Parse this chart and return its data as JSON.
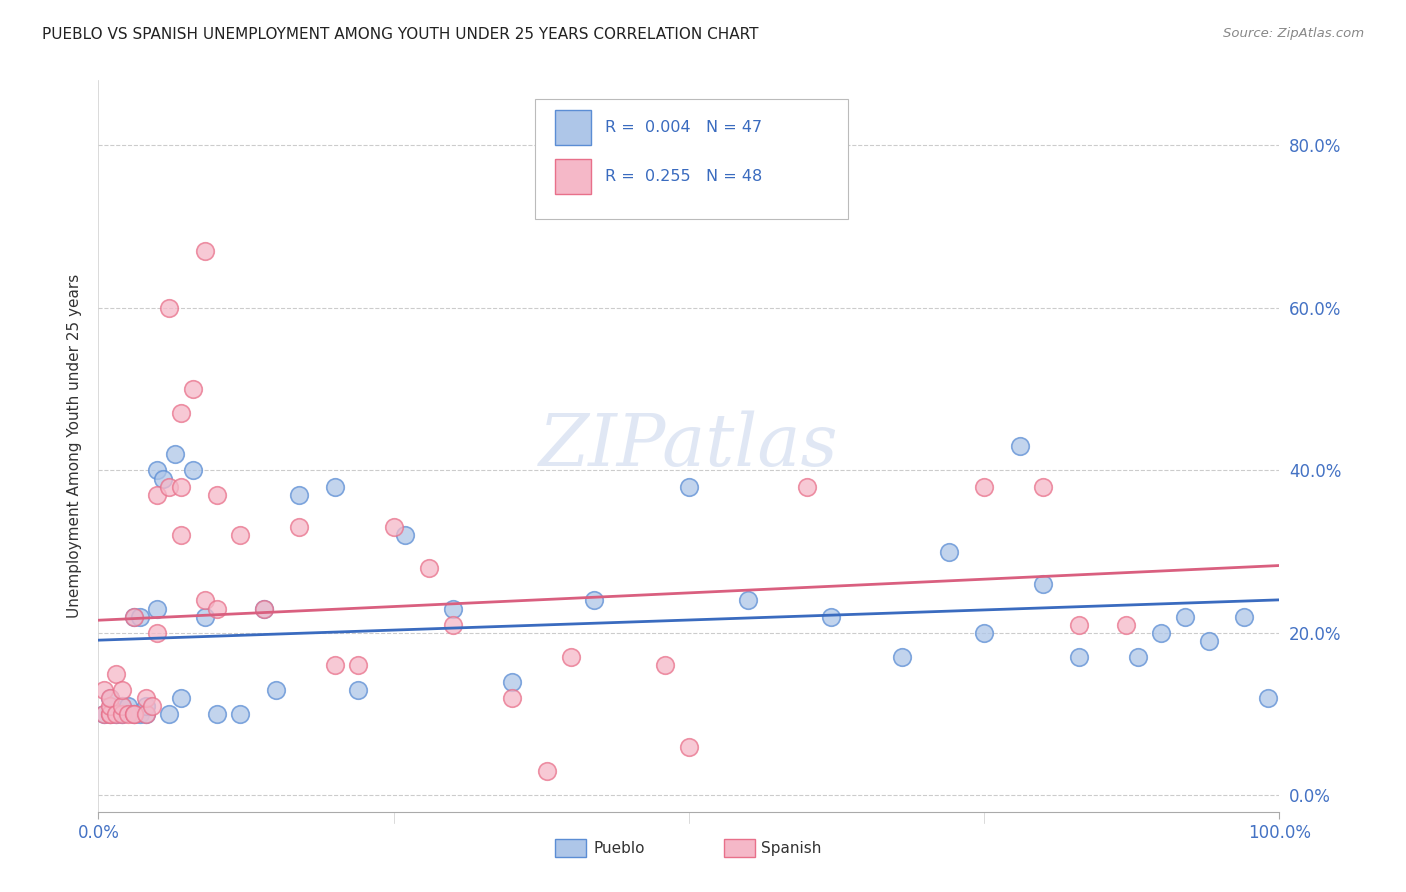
{
  "title": "PUEBLO VS SPANISH UNEMPLOYMENT AMONG YOUTH UNDER 25 YEARS CORRELATION CHART",
  "source": "Source: ZipAtlas.com",
  "ylabel": "Unemployment Among Youth under 25 years",
  "ytick_labels": [
    "0.0%",
    "20.0%",
    "40.0%",
    "60.0%",
    "80.0%"
  ],
  "ytick_vals": [
    0.0,
    0.2,
    0.4,
    0.6,
    0.8
  ],
  "legend_pueblo": "Pueblo",
  "legend_spanish": "Spanish",
  "pueblo_R": "0.004",
  "pueblo_N": "47",
  "spanish_R": "0.255",
  "spanish_N": "48",
  "pueblo_color": "#aec6e8",
  "spanish_color": "#f5b8c8",
  "pueblo_edge_color": "#5b8dd4",
  "spanish_edge_color": "#e8708a",
  "pueblo_line_color": "#3a6bbf",
  "spanish_line_color": "#d95f7f",
  "tick_color": "#4472c4",
  "text_color": "#333333",
  "grid_color": "#cccccc",
  "watermark": "ZIPatlas",
  "watermark_color": "#ccd8ee",
  "xlim": [
    0.0,
    1.0
  ],
  "ylim": [
    -0.02,
    0.88
  ],
  "pueblo_x": [
    0.005,
    0.01,
    0.01,
    0.015,
    0.02,
    0.02,
    0.025,
    0.03,
    0.03,
    0.035,
    0.035,
    0.04,
    0.04,
    0.05,
    0.05,
    0.055,
    0.06,
    0.065,
    0.07,
    0.08,
    0.09,
    0.1,
    0.12,
    0.14,
    0.15,
    0.17,
    0.2,
    0.22,
    0.26,
    0.3,
    0.35,
    0.42,
    0.5,
    0.55,
    0.62,
    0.68,
    0.72,
    0.75,
    0.78,
    0.8,
    0.83,
    0.88,
    0.9,
    0.92,
    0.94,
    0.97,
    0.99
  ],
  "pueblo_y": [
    0.1,
    0.1,
    0.12,
    0.1,
    0.1,
    0.11,
    0.11,
    0.1,
    0.22,
    0.1,
    0.22,
    0.1,
    0.11,
    0.23,
    0.4,
    0.39,
    0.1,
    0.42,
    0.12,
    0.4,
    0.22,
    0.1,
    0.1,
    0.23,
    0.13,
    0.37,
    0.38,
    0.13,
    0.32,
    0.23,
    0.14,
    0.24,
    0.38,
    0.24,
    0.22,
    0.17,
    0.3,
    0.2,
    0.43,
    0.26,
    0.17,
    0.17,
    0.2,
    0.22,
    0.19,
    0.22,
    0.12
  ],
  "spanish_x": [
    0.005,
    0.005,
    0.01,
    0.01,
    0.01,
    0.01,
    0.015,
    0.015,
    0.02,
    0.02,
    0.02,
    0.025,
    0.03,
    0.03,
    0.03,
    0.04,
    0.04,
    0.045,
    0.05,
    0.05,
    0.06,
    0.06,
    0.07,
    0.07,
    0.07,
    0.08,
    0.09,
    0.09,
    0.1,
    0.1,
    0.12,
    0.14,
    0.17,
    0.2,
    0.22,
    0.25,
    0.28,
    0.3,
    0.35,
    0.38,
    0.4,
    0.48,
    0.5,
    0.6,
    0.75,
    0.8,
    0.83,
    0.87
  ],
  "spanish_y": [
    0.1,
    0.13,
    0.1,
    0.1,
    0.11,
    0.12,
    0.1,
    0.15,
    0.1,
    0.11,
    0.13,
    0.1,
    0.1,
    0.1,
    0.22,
    0.1,
    0.12,
    0.11,
    0.2,
    0.37,
    0.38,
    0.6,
    0.38,
    0.32,
    0.47,
    0.5,
    0.67,
    0.24,
    0.37,
    0.23,
    0.32,
    0.23,
    0.33,
    0.16,
    0.16,
    0.33,
    0.28,
    0.21,
    0.12,
    0.03,
    0.17,
    0.16,
    0.06,
    0.38,
    0.38,
    0.38,
    0.21,
    0.21
  ]
}
